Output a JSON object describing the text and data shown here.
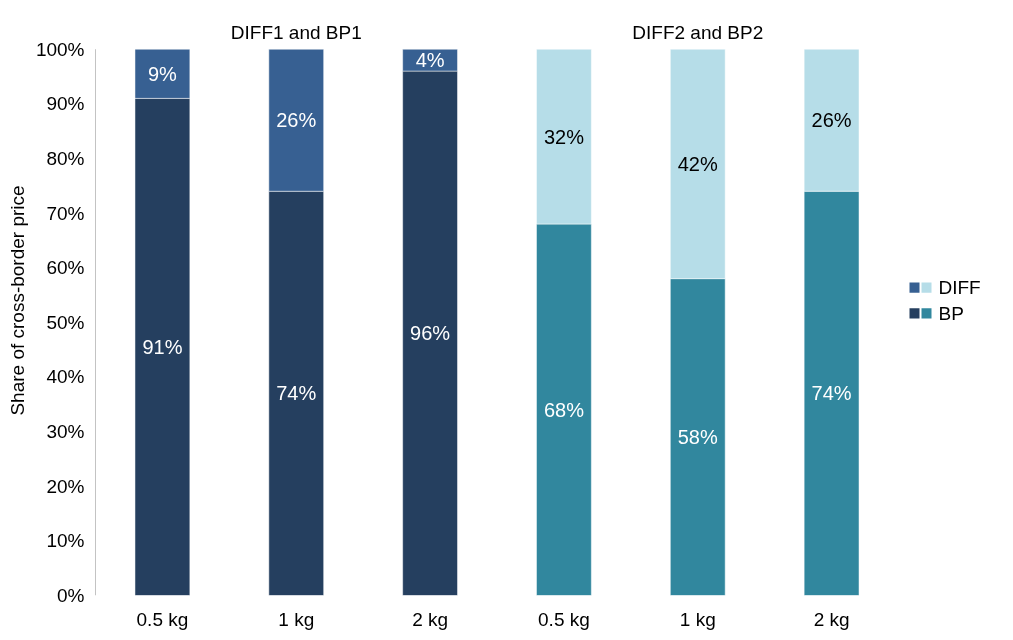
{
  "chart_data": {
    "type": "bar",
    "stacked": true,
    "ylabel": "Share of cross-border price",
    "categories": [
      "0.5 kg",
      "1 kg",
      "2 kg",
      "0.5 kg",
      "1 kg",
      "2 kg"
    ],
    "series": [
      {
        "name": "BP",
        "colors": [
          "#253f5f",
          "#253f5f",
          "#253f5f",
          "#31879e",
          "#31879e",
          "#31879e"
        ],
        "values": [
          91,
          74,
          96,
          68,
          58,
          74
        ],
        "value_labels": [
          "91%",
          "74%",
          "96%",
          "68%",
          "58%",
          "74%"
        ]
      },
      {
        "name": "DIFF",
        "colors": [
          "#376092",
          "#376092",
          "#376092",
          "#b6dde8",
          "#b6dde8",
          "#b6dde8"
        ],
        "values": [
          9,
          26,
          4,
          32,
          42,
          26
        ],
        "value_labels": [
          "9%",
          "26%",
          "4%",
          "32%",
          "42%",
          "26%"
        ]
      }
    ],
    "annotations": [
      "DIFF1 and BP1",
      "DIFF2 and BP2"
    ],
    "ylim": [
      0,
      100
    ],
    "yticks": [
      {
        "value": 0,
        "label": "0%"
      },
      {
        "value": 10,
        "label": "10%"
      },
      {
        "value": 20,
        "label": "20%"
      },
      {
        "value": 30,
        "label": "30%"
      },
      {
        "value": 40,
        "label": "40%"
      },
      {
        "value": 50,
        "label": "50%"
      },
      {
        "value": 60,
        "label": "60%"
      },
      {
        "value": 70,
        "label": "70%"
      },
      {
        "value": 80,
        "label": "80%"
      },
      {
        "value": 90,
        "label": "90%"
      },
      {
        "value": 100,
        "label": "100%"
      }
    ],
    "grid": false,
    "legend": "right"
  }
}
